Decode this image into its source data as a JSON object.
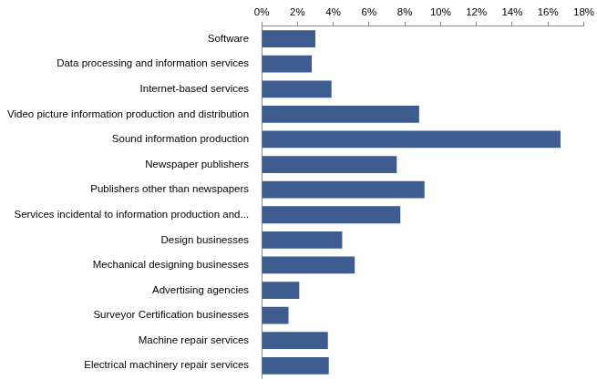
{
  "chart_data": {
    "type": "bar",
    "orientation": "horizontal",
    "categories": [
      "Software",
      "Data processing and information services",
      "Internet-based services",
      "Video picture information production and distribution",
      "Sound information production",
      "Newspaper publishers",
      "Publishers other than newspapers",
      "Services incidental to information production and...",
      "Design businesses",
      "Mechanical designing businesses",
      "Advertising agencies",
      "Surveyor Certification businesses",
      "Machine repair services",
      "Electrical machinery repair services"
    ],
    "values": [
      3.0,
      2.8,
      3.9,
      8.8,
      16.7,
      7.55,
      9.1,
      7.75,
      4.5,
      5.2,
      2.1,
      1.5,
      3.7,
      3.75
    ],
    "color": "#3d5d91",
    "xlim": [
      0,
      18
    ],
    "xticks": [
      {
        "value": 0,
        "label": "0%"
      },
      {
        "value": 2,
        "label": "2%"
      },
      {
        "value": 4,
        "label": "4%"
      },
      {
        "value": 6,
        "label": "6%"
      },
      {
        "value": 8,
        "label": "8%"
      },
      {
        "value": 10,
        "label": "10%"
      },
      {
        "value": 12,
        "label": "12%"
      },
      {
        "value": 14,
        "label": "14%"
      },
      {
        "value": 16,
        "label": "16%"
      },
      {
        "value": 18,
        "label": "18%"
      }
    ],
    "grid": false
  }
}
